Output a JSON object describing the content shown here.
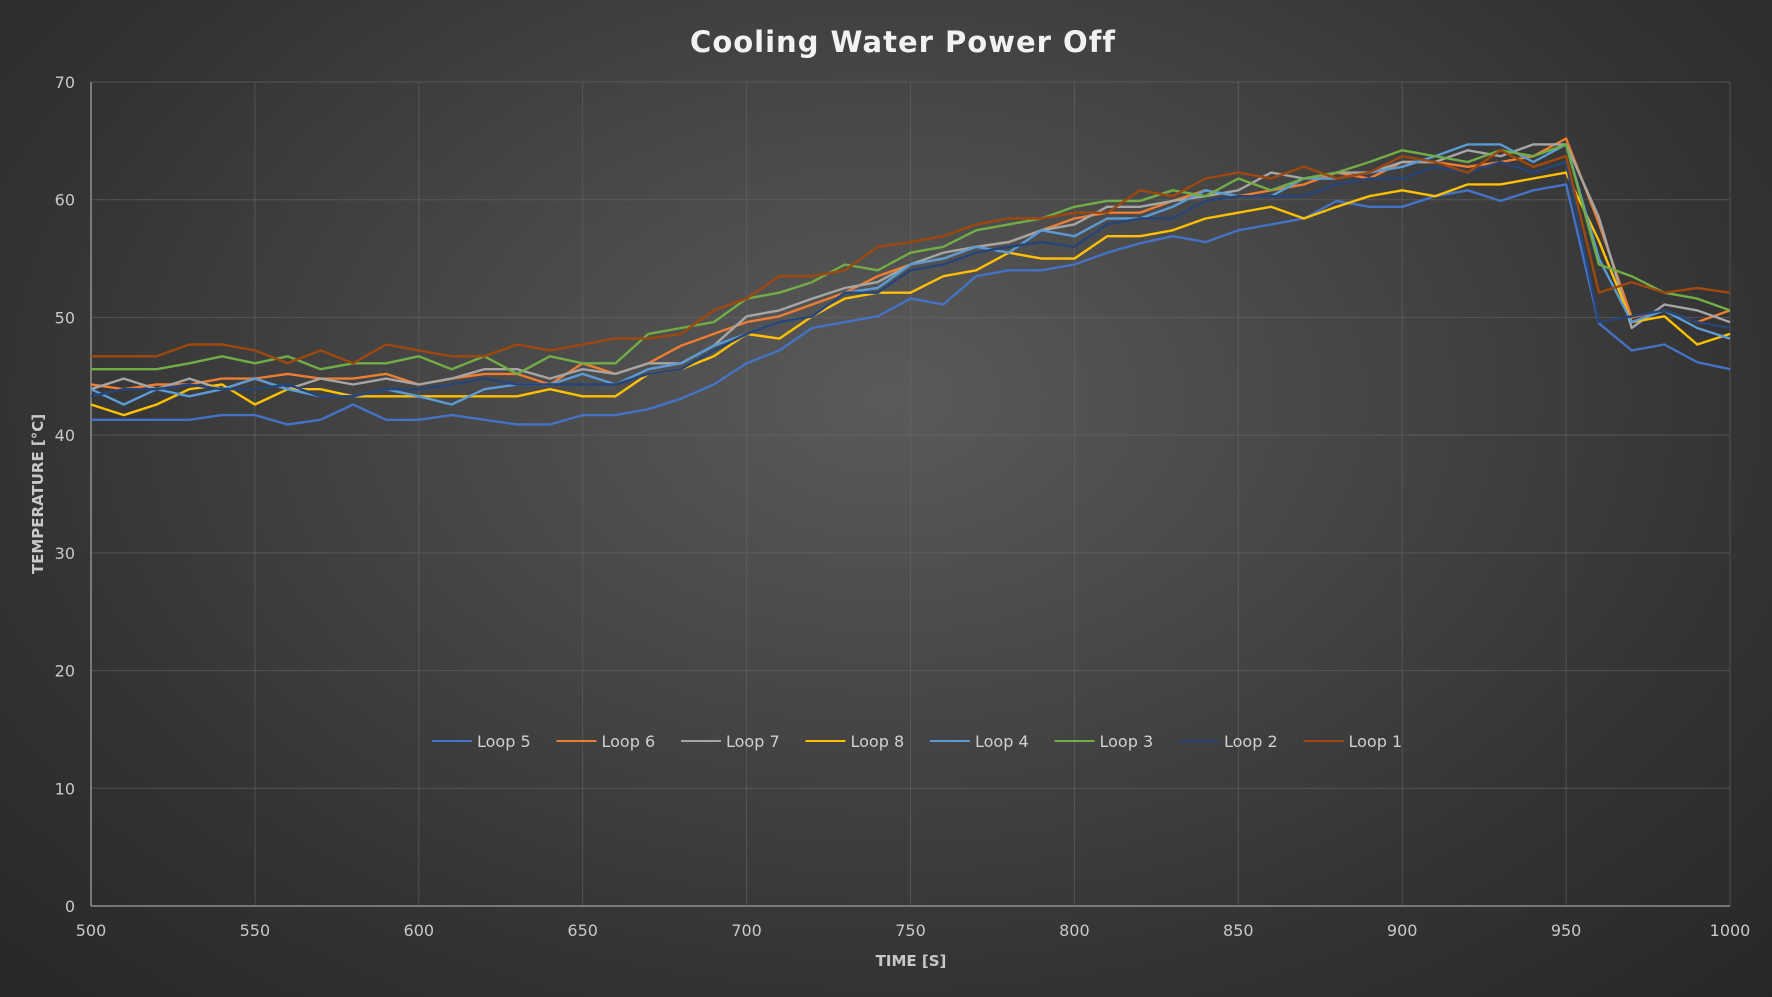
{
  "chart_data": {
    "type": "line",
    "title": "Cooling Water Power Off",
    "xlabel": "TIME [S]",
    "ylabel": "TEMPERATURE [°C]",
    "xlim": [
      500,
      1000
    ],
    "ylim": [
      0,
      70
    ],
    "x_ticks": [
      500,
      550,
      600,
      650,
      700,
      750,
      800,
      850,
      900,
      950,
      1000
    ],
    "y_ticks": [
      0,
      10,
      20,
      30,
      40,
      50,
      60,
      70
    ],
    "grid": true,
    "legend_position": "inside-bottom-center",
    "x": [
      500,
      510,
      520,
      530,
      540,
      550,
      560,
      570,
      580,
      590,
      600,
      610,
      620,
      630,
      640,
      650,
      660,
      670,
      680,
      690,
      700,
      710,
      720,
      730,
      740,
      750,
      760,
      770,
      780,
      790,
      800,
      810,
      820,
      830,
      840,
      850,
      860,
      870,
      880,
      890,
      900,
      910,
      920,
      930,
      940,
      950,
      960,
      970,
      980,
      990,
      1000
    ],
    "series": [
      {
        "name": "Loop 5",
        "color": "#4472c4",
        "values": [
          41.3,
          41.3,
          41.3,
          41.3,
          41.7,
          41.7,
          40.9,
          41.3,
          42.6,
          41.3,
          41.3,
          41.7,
          41.3,
          40.9,
          40.9,
          41.7,
          41.7,
          42.2,
          43.1,
          44.3,
          46.1,
          47.2,
          49.1,
          49.6,
          50.1,
          51.6,
          51.1,
          53.5,
          54.0,
          54.0,
          54.5,
          55.5,
          56.3,
          56.9,
          56.4,
          57.4,
          57.9,
          58.4,
          59.9,
          59.4,
          59.4,
          60.3,
          60.8,
          59.9,
          60.8,
          61.3,
          49.5,
          47.2,
          47.7,
          46.2,
          45.6
        ]
      },
      {
        "name": "Loop 6",
        "color": "#ed7d31",
        "values": [
          44.3,
          43.9,
          44.3,
          44.3,
          44.8,
          44.8,
          45.2,
          44.8,
          44.8,
          45.2,
          44.3,
          44.8,
          45.2,
          45.2,
          44.3,
          46.1,
          45.2,
          46.1,
          47.6,
          48.6,
          49.6,
          50.1,
          51.1,
          52.1,
          53.5,
          54.5,
          55.0,
          56.0,
          56.4,
          57.4,
          58.4,
          58.9,
          58.9,
          59.9,
          60.8,
          60.3,
          60.8,
          61.3,
          62.3,
          61.8,
          63.2,
          63.2,
          62.8,
          63.2,
          63.7,
          65.2,
          58.0,
          50.0,
          50.6,
          49.6,
          50.6
        ]
      },
      {
        "name": "Loop 7",
        "color": "#a5a5a5",
        "values": [
          43.9,
          44.8,
          43.9,
          44.8,
          43.9,
          44.8,
          43.9,
          44.8,
          44.3,
          44.8,
          44.3,
          44.8,
          45.6,
          45.6,
          44.8,
          45.6,
          45.2,
          46.1,
          46.1,
          47.6,
          50.1,
          50.6,
          51.6,
          52.5,
          53.0,
          54.5,
          55.5,
          56.0,
          56.4,
          57.4,
          57.9,
          59.4,
          59.4,
          59.9,
          60.3,
          60.8,
          62.3,
          61.8,
          62.3,
          62.3,
          63.2,
          63.2,
          64.2,
          63.7,
          64.7,
          64.7,
          58.5,
          49.1,
          51.1,
          50.6,
          49.6
        ]
      },
      {
        "name": "Loop 8",
        "color": "#ffc000",
        "values": [
          42.6,
          41.7,
          42.6,
          43.9,
          44.3,
          42.6,
          43.9,
          43.9,
          43.3,
          43.3,
          43.3,
          43.3,
          43.3,
          43.3,
          43.9,
          43.3,
          43.3,
          45.2,
          45.6,
          46.7,
          48.6,
          48.2,
          50.1,
          51.6,
          52.1,
          52.1,
          53.5,
          54.0,
          55.5,
          55.0,
          55.0,
          56.9,
          56.9,
          57.4,
          58.4,
          58.9,
          59.4,
          58.4,
          59.4,
          60.3,
          60.8,
          60.3,
          61.3,
          61.3,
          61.8,
          62.3,
          56.5,
          49.6,
          50.1,
          47.7,
          48.6
        ]
      },
      {
        "name": "Loop 4",
        "color": "#5b9bd5",
        "values": [
          43.9,
          42.6,
          43.9,
          43.3,
          43.9,
          44.8,
          43.9,
          43.3,
          43.3,
          43.9,
          43.3,
          42.6,
          43.9,
          44.3,
          44.3,
          45.2,
          44.3,
          45.6,
          46.1,
          47.6,
          48.6,
          49.6,
          50.1,
          52.1,
          52.5,
          54.5,
          55.0,
          56.0,
          55.5,
          57.4,
          56.9,
          58.4,
          58.4,
          59.4,
          60.8,
          60.3,
          60.3,
          61.8,
          61.8,
          62.3,
          62.8,
          63.7,
          64.7,
          64.7,
          63.2,
          64.7,
          55.0,
          49.6,
          50.6,
          49.1,
          48.2
        ]
      },
      {
        "name": "Loop 3",
        "color": "#70ad47",
        "values": [
          45.6,
          45.6,
          45.6,
          46.1,
          46.7,
          46.1,
          46.7,
          45.6,
          46.1,
          46.1,
          46.7,
          45.6,
          46.7,
          45.2,
          46.7,
          46.1,
          46.1,
          48.6,
          49.1,
          49.6,
          51.6,
          52.1,
          53.0,
          54.5,
          54.0,
          55.5,
          56.0,
          57.4,
          57.9,
          58.4,
          59.4,
          59.9,
          59.9,
          60.8,
          60.3,
          61.8,
          60.8,
          61.8,
          62.3,
          63.2,
          64.2,
          63.7,
          63.2,
          64.2,
          63.7,
          64.7,
          54.5,
          53.5,
          52.1,
          51.6,
          50.6
        ]
      },
      {
        "name": "Loop 2",
        "color": "#264478",
        "values": [
          43.3,
          43.9,
          43.9,
          44.3,
          43.9,
          43.9,
          44.3,
          43.3,
          43.3,
          43.9,
          43.9,
          44.3,
          44.8,
          44.3,
          44.3,
          44.3,
          44.3,
          45.2,
          45.6,
          47.2,
          48.6,
          49.6,
          50.1,
          52.1,
          52.1,
          54.0,
          54.5,
          55.5,
          56.0,
          56.4,
          56.0,
          57.9,
          58.4,
          58.4,
          59.9,
          60.3,
          60.3,
          60.3,
          61.3,
          61.8,
          61.8,
          62.8,
          62.3,
          63.2,
          62.3,
          63.2,
          49.6,
          50.1,
          50.6,
          49.6,
          49.1
        ]
      },
      {
        "name": "Loop 1",
        "color": "#9e480e",
        "values": [
          46.7,
          46.7,
          46.7,
          47.7,
          47.7,
          47.2,
          46.1,
          47.2,
          46.1,
          47.7,
          47.2,
          46.7,
          46.7,
          47.7,
          47.2,
          47.7,
          48.2,
          48.2,
          48.6,
          50.6,
          51.6,
          53.5,
          53.5,
          54.0,
          56.0,
          56.4,
          56.9,
          57.9,
          58.4,
          58.4,
          58.9,
          58.9,
          60.8,
          60.3,
          61.8,
          62.3,
          61.8,
          62.8,
          61.8,
          62.3,
          63.7,
          63.2,
          62.3,
          64.2,
          62.8,
          63.7,
          52.1,
          53.0,
          52.1,
          52.5,
          52.1
        ]
      }
    ]
  }
}
